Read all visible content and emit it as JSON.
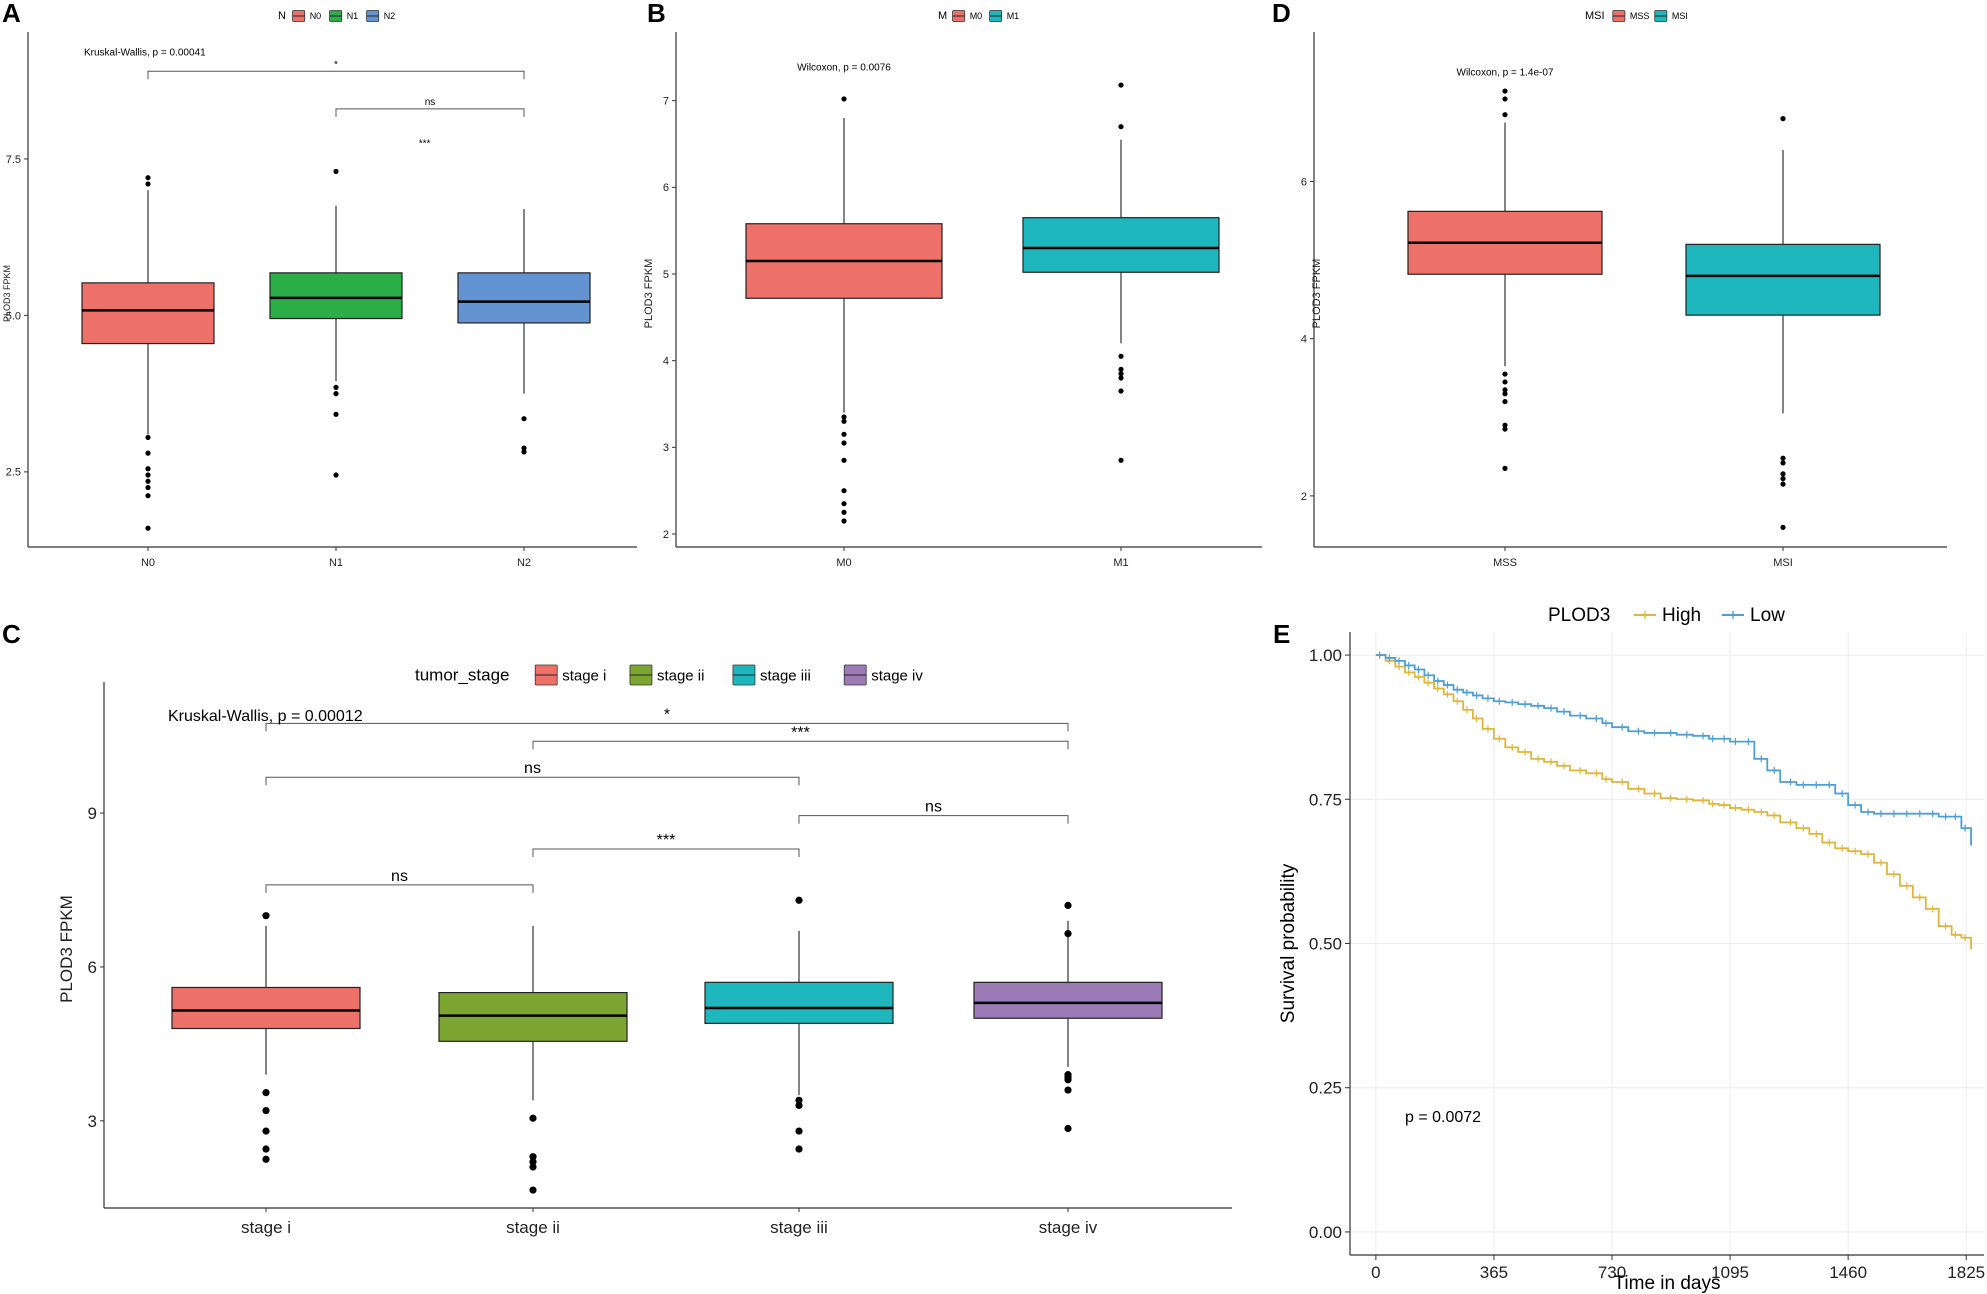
{
  "colors": {
    "red": "#EE7169",
    "green": "#2BAE48",
    "blue": "#6493D1",
    "teal": "#1FB7BE",
    "olive": "#7CA631",
    "purple": "#9C7BB7",
    "high": "#E1B53A",
    "low": "#4C9FD7"
  },
  "chart_data": [
    {
      "panel": "A",
      "type": "box",
      "ylabel": "PLOD3 FPKM",
      "ylim": [
        1.3,
        9.4
      ],
      "yticks": [
        2.5,
        5.0,
        7.5
      ],
      "ytick_labels": [
        "2.5",
        "5.0",
        "7.5"
      ],
      "legend": {
        "title": "N",
        "entries": [
          "N0",
          "N1",
          "N2"
        ],
        "position": "top-center"
      },
      "groups": [
        {
          "name": "N0",
          "color_key": "red",
          "q1": 4.55,
          "median": 5.08,
          "q3": 5.52,
          "wlo": 3.1,
          "whi": 7.0,
          "outliers": [
            7.1,
            7.2,
            3.05,
            2.8,
            2.55,
            2.45,
            2.35,
            2.25,
            2.12,
            1.6
          ]
        },
        {
          "name": "N1",
          "color_key": "green",
          "q1": 4.95,
          "median": 5.28,
          "q3": 5.68,
          "wlo": 3.95,
          "whi": 6.75,
          "outliers": [
            7.3,
            3.85,
            3.75,
            3.42,
            2.45
          ]
        },
        {
          "name": "N2",
          "color_key": "blue",
          "q1": 4.88,
          "median": 5.22,
          "q3": 5.68,
          "wlo": 3.75,
          "whi": 6.7,
          "outliers": [
            3.35,
            2.88,
            2.82
          ]
        }
      ],
      "brackets": [
        {
          "from": 0,
          "to": 2,
          "y": 8.9,
          "label": "*"
        },
        {
          "from": 1,
          "to": 2,
          "y": 8.3,
          "label": "ns"
        }
      ],
      "annotations": [
        {
          "text": "Kruskal-Wallis, p = 0.00041",
          "x": 0.0,
          "y": 9.15
        },
        {
          "text": "***",
          "x": 0.72,
          "y": 7.7
        }
      ]
    },
    {
      "panel": "B",
      "type": "box",
      "ylabel": "PLOD3 FPKM",
      "ylim": [
        1.85,
        7.7
      ],
      "yticks": [
        2,
        3,
        4,
        5,
        6,
        7
      ],
      "ytick_labels": [
        "2",
        "3",
        "4",
        "5",
        "6",
        "7"
      ],
      "legend": {
        "title": "M",
        "entries": [
          "M0",
          "M1"
        ],
        "position": "top-center"
      },
      "groups": [
        {
          "name": "M0",
          "color_key": "red",
          "q1": 4.72,
          "median": 5.15,
          "q3": 5.58,
          "wlo": 3.4,
          "whi": 6.8,
          "outliers": [
            7.02,
            3.35,
            3.3,
            3.15,
            3.05,
            2.85,
            2.5,
            2.35,
            2.25,
            2.15
          ]
        },
        {
          "name": "M1",
          "color_key": "teal",
          "q1": 5.02,
          "median": 5.3,
          "q3": 5.65,
          "wlo": 4.2,
          "whi": 6.55,
          "outliers": [
            7.18,
            6.7,
            4.05,
            3.9,
            3.85,
            3.8,
            3.65,
            2.85
          ]
        }
      ],
      "annotations": [
        {
          "text": "Wilcoxon, p = 0.0076",
          "x": 0.0,
          "y": 7.35
        }
      ]
    },
    {
      "panel": "D",
      "type": "box",
      "ylabel": "PLOD3 FPKM",
      "ylim": [
        1.35,
        7.8
      ],
      "yticks": [
        2,
        4,
        6
      ],
      "ytick_labels": [
        "2",
        "4",
        "6"
      ],
      "legend": {
        "title": "MSI",
        "entries": [
          "MSS",
          "MSI"
        ],
        "position": "top-center"
      },
      "groups": [
        {
          "name": "MSS",
          "color_key": "red",
          "q1": 4.82,
          "median": 5.22,
          "q3": 5.62,
          "wlo": 3.65,
          "whi": 6.75,
          "outliers": [
            7.15,
            7.05,
            6.85,
            3.55,
            3.45,
            3.35,
            3.3,
            3.2,
            2.9,
            2.85,
            2.35
          ]
        },
        {
          "name": "MSI",
          "color_key": "teal",
          "q1": 4.3,
          "median": 4.8,
          "q3": 5.2,
          "wlo": 3.05,
          "whi": 6.4,
          "outliers": [
            6.8,
            2.48,
            2.42,
            2.28,
            2.22,
            2.15,
            1.6
          ]
        }
      ],
      "annotations": [
        {
          "text": "Wilcoxon, p = 1.4e-07",
          "x": 0.0,
          "y": 7.35
        }
      ]
    },
    {
      "panel": "C",
      "type": "box",
      "ylabel": "PLOD3 FPKM",
      "ylim": [
        1.3,
        11.4
      ],
      "yticks": [
        3,
        6,
        9
      ],
      "ytick_labels": [
        "3",
        "6",
        "9"
      ],
      "legend": {
        "title": "tumor_stage",
        "entries": [
          "stage i",
          "stage ii",
          "stage iii",
          "stage iv"
        ],
        "position": "top-center"
      },
      "groups": [
        {
          "name": "stage i",
          "color_key": "red",
          "q1": 4.8,
          "median": 5.15,
          "q3": 5.6,
          "wlo": 3.9,
          "whi": 6.8,
          "outliers": [
            7.0,
            3.55,
            3.2,
            2.8,
            2.45,
            2.25
          ]
        },
        {
          "name": "stage ii",
          "color_key": "olive",
          "q1": 4.55,
          "median": 5.05,
          "q3": 5.5,
          "wlo": 3.4,
          "whi": 6.8,
          "outliers": [
            3.05,
            2.3,
            2.2,
            2.1,
            1.65
          ]
        },
        {
          "name": "stage iii",
          "color_key": "teal",
          "q1": 4.9,
          "median": 5.2,
          "q3": 5.7,
          "wlo": 3.5,
          "whi": 6.7,
          "outliers": [
            7.3,
            3.4,
            3.3,
            2.8,
            2.45
          ]
        },
        {
          "name": "stage iv",
          "color_key": "purple",
          "q1": 5.0,
          "median": 5.3,
          "q3": 5.7,
          "wlo": 4.05,
          "whi": 6.9,
          "outliers": [
            7.2,
            6.65,
            3.9,
            3.85,
            3.8,
            3.6,
            2.85
          ]
        }
      ],
      "brackets": [
        {
          "from": 0,
          "to": 3,
          "y": 10.75,
          "label": "*"
        },
        {
          "from": 1,
          "to": 3,
          "y": 10.4,
          "label": "***"
        },
        {
          "from": 0,
          "to": 2,
          "y": 9.7,
          "label": "ns"
        },
        {
          "from": 2,
          "to": 3,
          "y": 8.95,
          "label": "ns"
        },
        {
          "from": 1,
          "to": 2,
          "y": 8.3,
          "label": "***"
        },
        {
          "from": 0,
          "to": 1,
          "y": 7.6,
          "label": "ns"
        }
      ],
      "annotations": [
        {
          "text": "Kruskal-Wallis, p = 0.00012",
          "x": -0.2,
          "y": 10.8
        }
      ]
    },
    {
      "panel": "E",
      "type": "line",
      "title": "",
      "xlabel": "Time in days",
      "ylabel": "Survival probability",
      "xlim": [
        -80,
        1880
      ],
      "ylim": [
        -0.04,
        1.04
      ],
      "xticks": [
        0,
        365,
        730,
        1095,
        1460,
        1825
      ],
      "xtick_labels": [
        "0",
        "365",
        "730",
        "1095",
        "1460",
        "1825"
      ],
      "yticks": [
        0,
        0.25,
        0.5,
        0.75,
        1.0
      ],
      "ytick_labels": [
        "0.00",
        "0.25",
        "0.50",
        "0.75",
        "1.00"
      ],
      "grid": true,
      "legend": {
        "title": "PLOD3",
        "entries": [
          "High",
          "Low"
        ],
        "position": "top-center"
      },
      "annotation": "p = 0.0072",
      "series": [
        {
          "name": "High",
          "color_key": "high",
          "x": [
            0,
            30,
            60,
            90,
            120,
            150,
            180,
            210,
            240,
            270,
            300,
            330,
            365,
            400,
            440,
            480,
            520,
            560,
            600,
            650,
            700,
            730,
            780,
            830,
            880,
            930,
            980,
            1030,
            1060,
            1095,
            1130,
            1170,
            1210,
            1250,
            1300,
            1340,
            1380,
            1420,
            1460,
            1500,
            1540,
            1580,
            1620,
            1660,
            1700,
            1740,
            1780,
            1810,
            1840
          ],
          "y": [
            1.0,
            0.99,
            0.98,
            0.97,
            0.962,
            0.952,
            0.942,
            0.932,
            0.92,
            0.905,
            0.89,
            0.872,
            0.855,
            0.84,
            0.832,
            0.82,
            0.815,
            0.808,
            0.8,
            0.795,
            0.785,
            0.78,
            0.768,
            0.76,
            0.752,
            0.75,
            0.748,
            0.742,
            0.74,
            0.735,
            0.732,
            0.728,
            0.722,
            0.71,
            0.7,
            0.69,
            0.675,
            0.665,
            0.66,
            0.655,
            0.64,
            0.62,
            0.6,
            0.58,
            0.56,
            0.53,
            0.515,
            0.51,
            0.49
          ]
        },
        {
          "name": "Low",
          "color_key": "low",
          "x": [
            0,
            30,
            60,
            90,
            120,
            150,
            180,
            210,
            240,
            270,
            300,
            330,
            365,
            400,
            440,
            480,
            520,
            560,
            600,
            650,
            700,
            730,
            780,
            830,
            880,
            930,
            980,
            1030,
            1060,
            1095,
            1130,
            1170,
            1210,
            1250,
            1300,
            1340,
            1380,
            1420,
            1460,
            1500,
            1540,
            1580,
            1620,
            1660,
            1700,
            1740,
            1780,
            1810,
            1840
          ],
          "y": [
            1.0,
            0.995,
            0.99,
            0.982,
            0.975,
            0.965,
            0.955,
            0.948,
            0.94,
            0.935,
            0.93,
            0.925,
            0.92,
            0.918,
            0.915,
            0.912,
            0.908,
            0.902,
            0.895,
            0.89,
            0.882,
            0.875,
            0.868,
            0.865,
            0.865,
            0.862,
            0.86,
            0.855,
            0.855,
            0.85,
            0.85,
            0.82,
            0.8,
            0.78,
            0.775,
            0.775,
            0.775,
            0.76,
            0.74,
            0.728,
            0.725,
            0.725,
            0.725,
            0.725,
            0.725,
            0.72,
            0.72,
            0.7,
            0.67
          ]
        }
      ]
    }
  ]
}
